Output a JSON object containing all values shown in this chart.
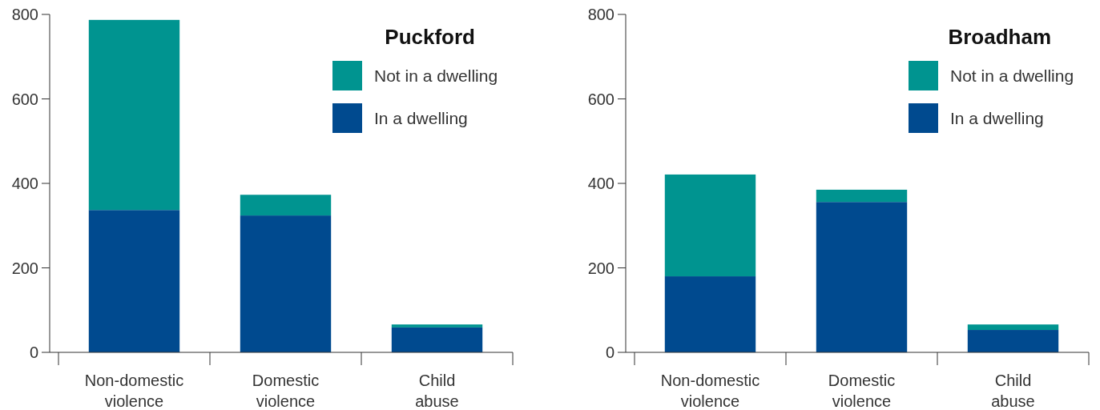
{
  "chart_data": [
    {
      "type": "bar",
      "title": "Puckford",
      "stacked": true,
      "legend": "top right",
      "categories": [
        "Non-domestic violence",
        "Domestic violence",
        "Child abuse"
      ],
      "series": [
        {
          "name": "In a dwelling",
          "color": "#004a8f",
          "values": [
            337,
            324,
            59
          ]
        },
        {
          "name": "Not in a dwelling",
          "color": "#009490",
          "values": [
            450,
            49,
            7
          ]
        }
      ],
      "ylim": [
        0,
        800
      ],
      "yticks": [
        0,
        200,
        400,
        600,
        800
      ]
    },
    {
      "type": "bar",
      "title": "Broadham",
      "stacked": true,
      "legend": "top right",
      "categories": [
        "Non-domestic violence",
        "Domestic violence",
        "Child abuse"
      ],
      "series": [
        {
          "name": "In a dwelling",
          "color": "#004a8f",
          "values": [
            180,
            356,
            53
          ]
        },
        {
          "name": "Not in a dwelling",
          "color": "#009490",
          "values": [
            241,
            29,
            13
          ]
        }
      ],
      "ylim": [
        0,
        800
      ],
      "yticks": [
        0,
        200,
        400,
        600,
        800
      ]
    }
  ]
}
